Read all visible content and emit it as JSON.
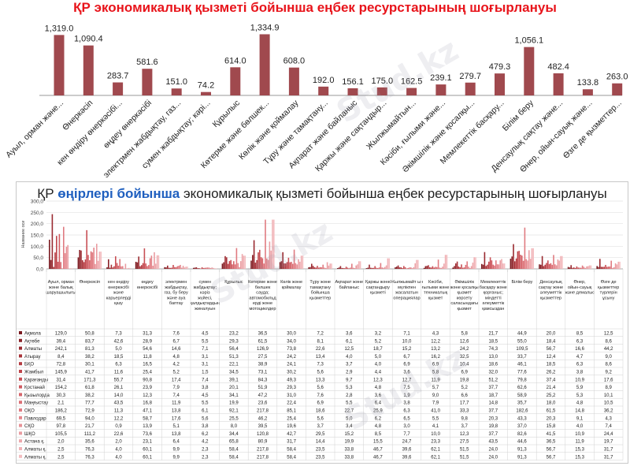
{
  "chart_data": [
    {
      "type": "bar",
      "title": "ҚР экономикалық қызметі бойынша еңбек ресурстарының шоғырлануы",
      "bar_color": "#a0494e",
      "categories": [
        "Ауыл, орман және...",
        "Өнеркәсіп",
        "кен өндіру өнеркәсібі...",
        "өңдеу өнеркәсібі",
        "электрмен жабдықтау, газ...",
        "сумен жабдықтау; кәрі...",
        "Құрылыс",
        "Көтерме және бөлшек...",
        "Көлік және қоймалау",
        "Тұру және тамақтану...",
        "Ақпарат және байланыс",
        "Қаржы және сақтандыр...",
        "Жылжымайтын...",
        "Кәсіби, ғылыми және...",
        "Әкімшілік және қосалқы...",
        "Мемлекеттік басқару...",
        "Білім беру",
        "Денсаулық сақтау және...",
        "Өнер, ойын-сауық және...",
        "Өзге де қызметтер..."
      ],
      "values": [
        1319.0,
        1090.4,
        283.7,
        581.6,
        151.0,
        74.2,
        614.0,
        1334.9,
        608.0,
        192.0,
        156.1,
        175.0,
        162.5,
        239.1,
        279.7,
        479.3,
        1056.1,
        482.4,
        133.8,
        263.0
      ],
      "value_labels": [
        "1,319.0",
        "1,090.4",
        "283.7",
        "581.6",
        "151.0",
        "74.2",
        "614.0",
        "1,334.9",
        "608.0",
        "192.0",
        "156.1",
        "175.0",
        "162.5",
        "239.1",
        "279.7",
        "479.3",
        "1,056.1",
        "482.4",
        "133.8",
        "263.0"
      ],
      "ylim": [
        0,
        1400
      ]
    },
    {
      "type": "bar",
      "title_pre": "ҚР ",
      "title_highlight": "өңірлері бойынша",
      "title_post": " экономикалық қызметі бойынша  еңбек ресурстарының шоғырлануы",
      "ylabel": "Название оси",
      "y_ticks": [
        "0,0",
        "50,0",
        "100,0",
        "150,0",
        "200,0",
        "250,0",
        "300,0"
      ],
      "ylim": [
        0,
        300
      ],
      "grid": true,
      "categories": [
        "Ауыл, орман және балық шаруашылығы",
        "Өнеркәсіп",
        "кен өндіру өнеркәсібі және карьерлерді қазу",
        "өңдеу өнеркәсібі",
        "электрмен жабдықтау, газ, бу беру және ауа баптау",
        "сумен жабдықтау; кәріз жүйесі, қалдықтардың жиналуын және таратылуын бақылау",
        "Құрылыс",
        "Көтерме және бөлшек сауда; автомобильд ерді және мотоциклдер ді жөндеу",
        "Көлік және қоймалау",
        "Тұру және тамақтану бойынша қызметтер",
        "Ақпарат және байланыс",
        "Қаржы және сақтандыру қызметі",
        "Жылжымайт ын мүлікпен жасалатын операциялар",
        "Кәсіби, ғылыми және техникалық қызмет",
        "Әкімшілік және қосалқы қызмет көрсету саласындағы қызмет",
        "Мемлекеттік басқару және қорғаныс; міндетті әлеуметтік қамсыздан ыру",
        "Білім беру",
        "Денсаулық сақтау және әлеуметтік қызметтер",
        "Өнер, ойын-сауық және демалыс",
        "Өзге де қызметтер түрлерін ұсыну"
      ],
      "series": [
        {
          "name": "Ақмола",
          "values": [
            "129,0",
            "50,8",
            "7,3",
            "31,3",
            "7,6",
            "4,5",
            "23,2",
            "36,5",
            "30,0",
            "7,2",
            "3,6",
            "3,2",
            "7,1",
            "4,3",
            "5,8",
            "21,7",
            "44,9",
            "20,0",
            "8,5",
            "12,5"
          ]
        },
        {
          "name": "Ақтөбе",
          "values": [
            "39,4",
            "83,7",
            "42,6",
            "28,9",
            "6,7",
            "5,5",
            "29,3",
            "61,5",
            "34,0",
            "8,1",
            "6,1",
            "5,2",
            "10,0",
            "12,2",
            "12,6",
            "18,5",
            "55,0",
            "18,4",
            "6,3",
            "8,6"
          ]
        },
        {
          "name": "Алматы",
          "values": [
            "242,1",
            "81,3",
            "5,0",
            "54,6",
            "14,6",
            "7,1",
            "56,4",
            "126,9",
            "73,8",
            "22,6",
            "12,5",
            "18,7",
            "15,2",
            "13,2",
            "24,2",
            "74,3",
            "109,5",
            "56,7",
            "16,6",
            "44,2"
          ]
        },
        {
          "name": "Атырау",
          "values": [
            "8,4",
            "38,2",
            "18,5",
            "11,8",
            "4,8",
            "3,1",
            "51,3",
            "27,5",
            "24,2",
            "13,4",
            "4,0",
            "5,0",
            "6,7",
            "16,2",
            "32,5",
            "13,0",
            "33,7",
            "12,4",
            "4,7",
            "9,0"
          ]
        },
        {
          "name": "БҚО",
          "values": [
            "72,8",
            "30,1",
            "6,3",
            "16,5",
            "4,2",
            "3,1",
            "22,1",
            "38,9",
            "24,1",
            "7,3",
            "3,7",
            "4,0",
            "6,9",
            "6,9",
            "10,4",
            "18,6",
            "46,1",
            "18,5",
            "6,3",
            "8,6"
          ]
        },
        {
          "name": "Жамбыл",
          "values": [
            "145,9",
            "41,7",
            "11,6",
            "25,4",
            "5,2",
            "1,5",
            "34,5",
            "73,1",
            "30,2",
            "5,6",
            "2,9",
            "4,4",
            "3,6",
            "5,8",
            "6,9",
            "32,0",
            "77,6",
            "26,2",
            "3,8",
            "9,2"
          ]
        },
        {
          "name": "Қарағанды",
          "values": [
            "31,4",
            "171,3",
            "55,7",
            "90,8",
            "17,4",
            "7,4",
            "39,1",
            "84,3",
            "49,3",
            "13,3",
            "9,7",
            "12,3",
            "12,7",
            "11,9",
            "19,8",
            "51,2",
            "79,8",
            "37,4",
            "10,9",
            "17,6"
          ]
        },
        {
          "name": "Қостанай",
          "values": [
            "154,2",
            "61,8",
            "26,1",
            "23,9",
            "7,9",
            "3,8",
            "20,1",
            "51,9",
            "29,3",
            "5,6",
            "5,3",
            "4,8",
            "7,5",
            "5,7",
            "5,2",
            "37,7",
            "62,6",
            "21,4",
            "5,9",
            "8,9"
          ]
        },
        {
          "name": "Қызылорда",
          "values": [
            "30,3",
            "38,2",
            "14,0",
            "12,3",
            "7,4",
            "4,5",
            "34,1",
            "47,2",
            "31,0",
            "7,6",
            "2,8",
            "3,6",
            "1,9",
            "9,0",
            "6,6",
            "18,7",
            "58,9",
            "25,2",
            "5,3",
            "10,1"
          ]
        },
        {
          "name": "Маңғыстау",
          "values": [
            "2,1",
            "77,7",
            "43,5",
            "16,8",
            "11,9",
            "5,5",
            "19,9",
            "23,6",
            "22,4",
            "6,9",
            "5,5",
            "6,4",
            "3,8",
            "7,9",
            "17,7",
            "14,8",
            "35,7",
            "18,0",
            "4,8",
            "10,5"
          ]
        },
        {
          "name": "ОҚО",
          "values": [
            "186,2",
            "72,9",
            "11,3",
            "47,1",
            "13,8",
            "6,1",
            "92,1",
            "217,8",
            "85,1",
            "18,6",
            "22,7",
            "25,9",
            "6,3",
            "41,0",
            "33,3",
            "37,7",
            "182,6",
            "61,5",
            "14,8",
            "36,2"
          ]
        },
        {
          "name": "Павлодар",
          "values": [
            "69,5",
            "94,0",
            "12,2",
            "58,7",
            "17,6",
            "5,6",
            "25,5",
            "46,2",
            "25,4",
            "5,6",
            "5,0",
            "6,2",
            "6,5",
            "5,5",
            "9,8",
            "20,3",
            "43,3",
            "20,3",
            "9,1",
            "4,3"
          ]
        },
        {
          "name": "СҚО",
          "values": [
            "97,8",
            "21,7",
            "0,9",
            "13,9",
            "5,1",
            "3,8",
            "8,0",
            "39,5",
            "19,6",
            "3,7",
            "3,4",
            "4,8",
            "3,0",
            "4,1",
            "3,7",
            "19,8",
            "37,0",
            "15,8",
            "4,0",
            "7,4"
          ]
        },
        {
          "name": "ШҚО",
          "values": [
            "105,5",
            "111,2",
            "22,6",
            "73,6",
            "13,8",
            "6,2",
            "34,4",
            "120,8",
            "42,7",
            "29,5",
            "15,2",
            "8,5",
            "7,7",
            "10,0",
            "12,3",
            "37,7",
            "82,6",
            "41,5",
            "10,9",
            "24,4"
          ]
        },
        {
          "name": "Астана қ.",
          "values": [
            "2,0",
            "35,6",
            "2,0",
            "23,1",
            "6,4",
            "4,2",
            "65,8",
            "80,9",
            "31,7",
            "14,4",
            "19,9",
            "15,5",
            "24,7",
            "23,3",
            "27,5",
            "43,5",
            "44,6",
            "36,5",
            "11,9",
            "19,7"
          ]
        },
        {
          "name": "Алматы қ.",
          "values": [
            "2,5",
            "76,3",
            "4,0",
            "60,1",
            "9,9",
            "2,3",
            "58,4",
            "217,8",
            "58,4",
            "23,5",
            "33,8",
            "46,7",
            "39,6",
            "62,1",
            "51,5",
            "24,0",
            "91,3",
            "56,7",
            "15,3",
            "31,7"
          ]
        },
        {
          "name": "Алматы қ.",
          "values": [
            "2,5",
            "76,3",
            "4,0",
            "60,1",
            "9,9",
            "2,3",
            "58,4",
            "217,8",
            "58,4",
            "23,5",
            "33,8",
            "46,7",
            "39,6",
            "62,1",
            "51,5",
            "24,0",
            "91,3",
            "56,7",
            "15,3",
            "31,7"
          ]
        }
      ],
      "series_colors": [
        "#7a1a20",
        "#8a2228",
        "#9a2a30",
        "#a83238",
        "#b43a40",
        "#bf444a",
        "#c84f55",
        "#d05a60",
        "#d6656b",
        "#dc7076",
        "#e07b81",
        "#e4868c",
        "#e79196",
        "#ea9ca1",
        "#eda7ab",
        "#f0b2b6",
        "#f3bdc0"
      ]
    }
  ],
  "watermark": "Stud.kz"
}
